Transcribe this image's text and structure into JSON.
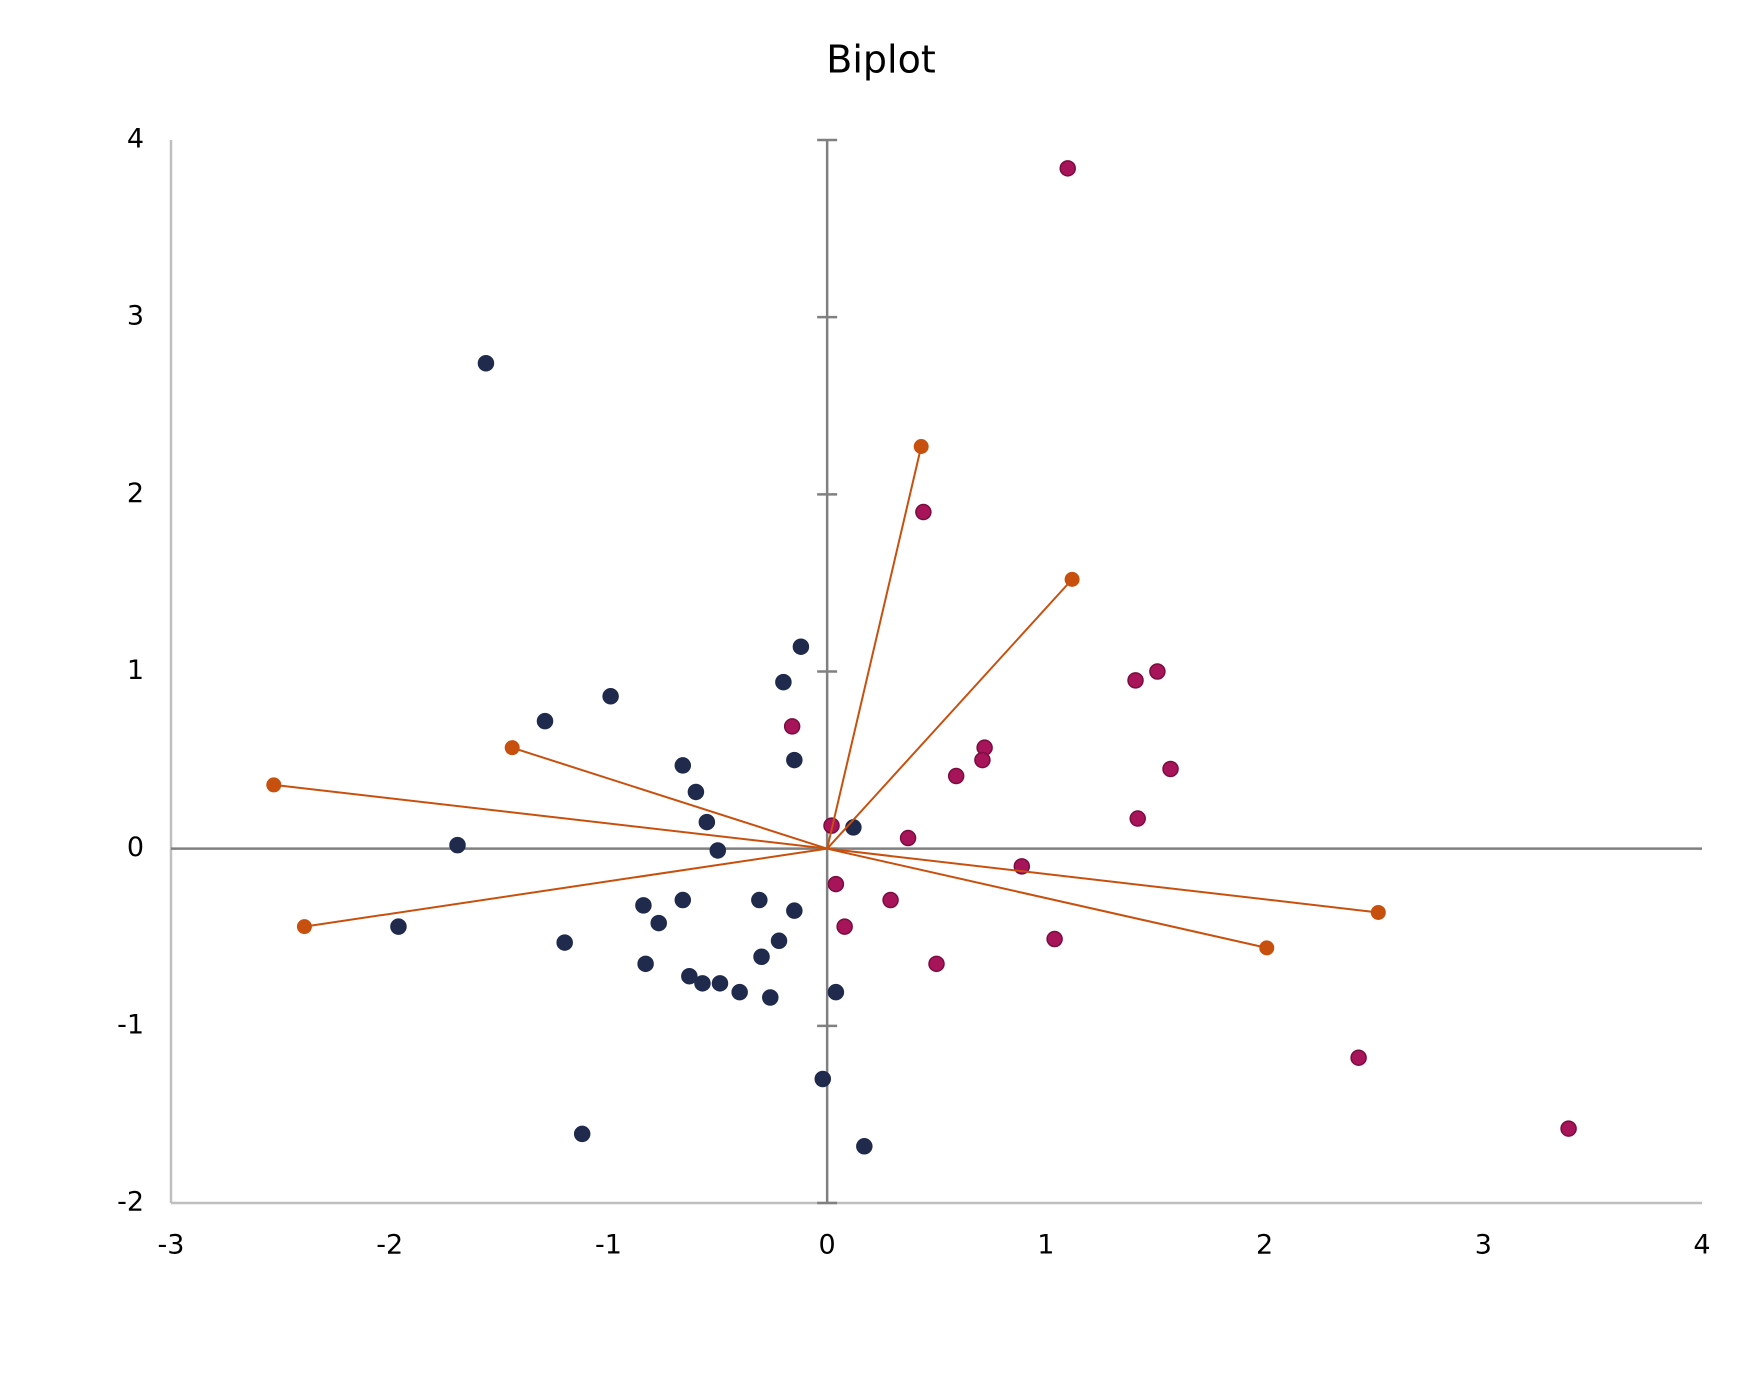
{
  "chart_data": {
    "type": "scatter",
    "title": "Biplot",
    "xlim": [
      -3,
      4
    ],
    "ylim": [
      -2,
      4
    ],
    "xticks": [
      -3,
      -2,
      -1,
      0,
      1,
      2,
      3,
      4
    ],
    "yticks": [
      -2,
      -1,
      0,
      1,
      2,
      3,
      4
    ],
    "series": [
      {
        "type": "scatter",
        "color": "#1f2a4d",
        "x": [
          -1.56,
          -0.12,
          -0.2,
          -0.99,
          -1.29,
          -0.66,
          -0.15,
          -0.6,
          -0.55,
          0.12,
          -1.69,
          -0.5,
          -0.84,
          -0.66,
          -0.31,
          -0.15,
          -0.77,
          -1.96,
          -1.2,
          -0.22,
          -0.3,
          -0.83,
          -0.63,
          -0.57,
          -0.49,
          -0.4,
          -0.26,
          0.04,
          -0.02,
          -1.12,
          0.17
        ],
        "values": [
          2.74,
          1.14,
          0.94,
          0.86,
          0.72,
          0.47,
          0.5,
          0.32,
          0.15,
          0.12,
          0.02,
          -0.01,
          -0.32,
          -0.29,
          -0.29,
          -0.35,
          -0.42,
          -0.44,
          -0.53,
          -0.52,
          -0.61,
          -0.65,
          -0.72,
          -0.76,
          -0.76,
          -0.81,
          -0.84,
          -0.81,
          -1.3,
          -1.61,
          -1.68
        ]
      },
      {
        "type": "scatter",
        "color": "#a8145a",
        "x": [
          1.1,
          0.44,
          1.51,
          1.41,
          -0.16,
          0.72,
          0.71,
          0.59,
          1.57,
          1.42,
          0.02,
          0.37,
          0.89,
          0.04,
          0.29,
          0.08,
          1.04,
          0.5,
          2.43,
          3.39
        ],
        "values": [
          3.84,
          1.9,
          1.0,
          0.95,
          0.69,
          0.57,
          0.5,
          0.41,
          0.45,
          0.17,
          0.13,
          0.06,
          -0.1,
          -0.2,
          -0.29,
          -0.44,
          -0.51,
          -0.65,
          -1.18,
          -1.58
        ]
      },
      {
        "type": "vector",
        "color": "#c8500e",
        "x": [
          0.43,
          1.12,
          -1.44,
          -2.53,
          -2.39,
          2.52,
          2.01
        ],
        "values": [
          2.27,
          1.52,
          0.57,
          0.36,
          -0.44,
          -0.36,
          -0.56
        ]
      }
    ]
  }
}
